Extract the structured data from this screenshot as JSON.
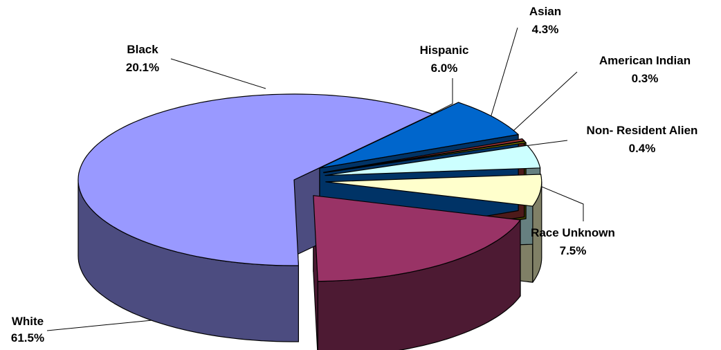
{
  "chart_data": {
    "type": "pie",
    "style": "3d-exploded",
    "legend": "none",
    "slices": [
      {
        "label": "White",
        "value": 61.5,
        "value_label": "61.5%",
        "color": "#9999ff",
        "side_color": "#4c4c80"
      },
      {
        "label": "Black",
        "value": 20.1,
        "value_label": "20.1%",
        "color": "#993366",
        "side_color": "#4d1a33"
      },
      {
        "label": "Hispanic",
        "value": 6.0,
        "value_label": "6.0%",
        "color": "#ffffcc",
        "side_color": "#808066"
      },
      {
        "label": "Asian",
        "value": 4.3,
        "value_label": "4.3%",
        "color": "#ccffff",
        "side_color": "#668080"
      },
      {
        "label": "American Indian",
        "value": 0.3,
        "value_label": "0.3%",
        "color": "#808000",
        "side_color": "#404000"
      },
      {
        "label": "Non- Resident Alien",
        "value": 0.4,
        "value_label": "0.4%",
        "color": "#993333",
        "side_color": "#4d1a1a"
      },
      {
        "label": "Race Unknown",
        "value": 7.5,
        "value_label": "7.5%",
        "color": "#0066cc",
        "side_color": "#003366"
      }
    ]
  }
}
